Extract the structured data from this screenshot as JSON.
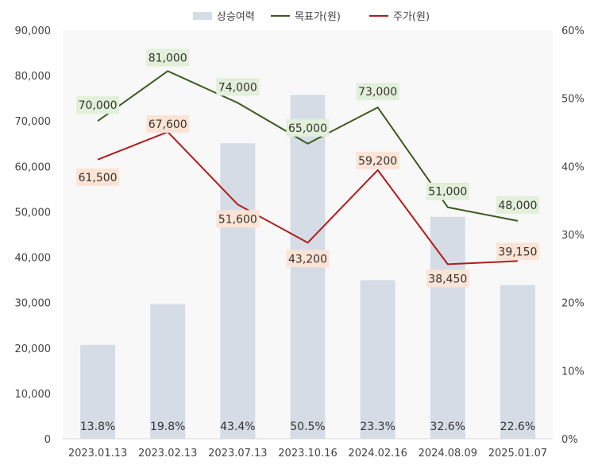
{
  "chart_data": {
    "type": "bar+line",
    "categories": [
      "2023.01.13",
      "2023.02.13",
      "2023.07.13",
      "2023.10.16",
      "2024.02.16",
      "2024.08.09",
      "2025.01.07"
    ],
    "series": [
      {
        "name": "상승여력",
        "type": "bar",
        "axis": "right",
        "values": [
          13.8,
          19.8,
          43.4,
          50.5,
          23.3,
          32.6,
          22.6
        ],
        "labels": [
          "13.8%",
          "19.8%",
          "43.4%",
          "50.5%",
          "23.3%",
          "32.6%",
          "22.6%"
        ],
        "color": "#d6dce6"
      },
      {
        "name": "목표가(원)",
        "type": "line",
        "axis": "left",
        "values": [
          70000,
          81000,
          74000,
          65000,
          73000,
          51000,
          48000
        ],
        "labels": [
          "70,000",
          "81,000",
          "74,000",
          "65,000",
          "73,000",
          "51,000",
          "48,000"
        ],
        "color": "#3d5a1f",
        "label_bg": "#e2efd9"
      },
      {
        "name": "주가(원)",
        "type": "line",
        "axis": "left",
        "values": [
          61500,
          67600,
          51600,
          43200,
          59200,
          38450,
          39150
        ],
        "labels": [
          "61,500",
          "67,600",
          "51,600",
          "43,200",
          "59,200",
          "38,450",
          "39,150"
        ],
        "color": "#b01c1c",
        "label_bg": "#fbe4d5"
      }
    ],
    "y_left": {
      "range": [
        0,
        90000
      ],
      "ticks": [
        0,
        10000,
        20000,
        30000,
        40000,
        50000,
        60000,
        70000,
        80000,
        90000
      ],
      "tick_labels": [
        "0",
        "10,000",
        "20,000",
        "30,000",
        "40,000",
        "50,000",
        "60,000",
        "70,000",
        "80,000",
        "90,000"
      ]
    },
    "y_right": {
      "range": [
        0,
        60
      ],
      "ticks": [
        0,
        10,
        20,
        30,
        40,
        50,
        60
      ],
      "tick_labels": [
        "0%",
        "10%",
        "20%",
        "30%",
        "40%",
        "50%",
        "60%"
      ]
    },
    "grid": false,
    "legend": "top-center",
    "plot_background": "#f8f8f8"
  }
}
